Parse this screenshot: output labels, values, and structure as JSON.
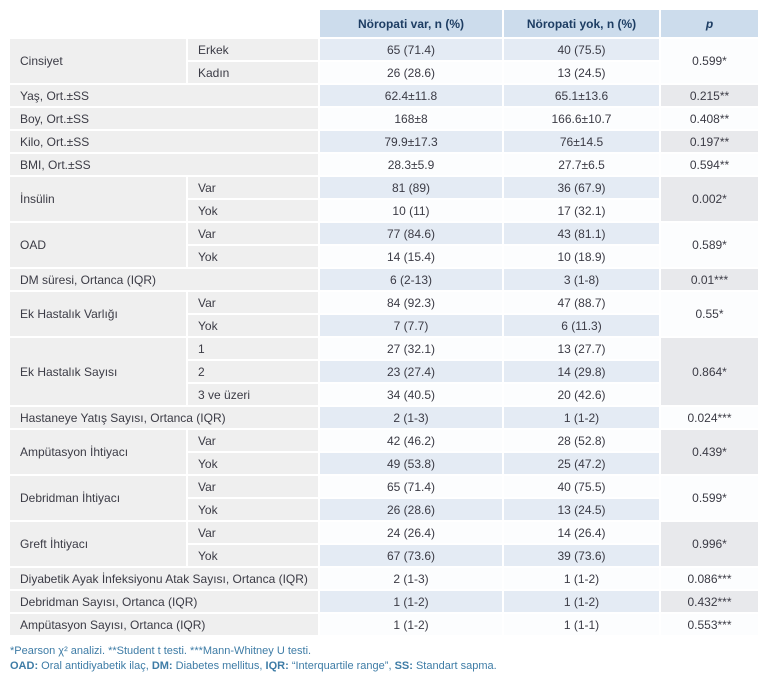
{
  "colors": {
    "header_bg": "#ccdcec",
    "header_text": "#1d3d63",
    "label_bg": "#efefef",
    "stripe_tint": "#e4ebf4",
    "stripe_plain": "#fcfdfe",
    "p_tint": "#e8e9ec",
    "body_text": "#3b3b45",
    "footnote_text": "#3e7ca6"
  },
  "table": {
    "header": {
      "neuropathy_yes": "Nöropati var, n (%)",
      "neuropathy_no": "Nöropati yok, n (%)",
      "p": "p"
    },
    "groups": [
      {
        "label": "Cinsiyet",
        "p": "0.599*",
        "rows": [
          {
            "sub": "Erkek",
            "yes": "65 (71.4)",
            "no": "40 (75.5)"
          },
          {
            "sub": "Kadın",
            "yes": "26 (28.6)",
            "no": "13 (24.5)"
          }
        ]
      },
      {
        "label": "Yaş, Ort.±SS",
        "p": "0.215**",
        "rows": [
          {
            "sub": null,
            "yes": "62.4±11.8",
            "no": "65.1±13.6"
          }
        ]
      },
      {
        "label": "Boy, Ort.±SS",
        "p": "0.408**",
        "rows": [
          {
            "sub": null,
            "yes": "168±8",
            "no": "166.6±10.7"
          }
        ]
      },
      {
        "label": "Kilo, Ort.±SS",
        "p": "0.197**",
        "rows": [
          {
            "sub": null,
            "yes": "79.9±17.3",
            "no": "76±14.5"
          }
        ]
      },
      {
        "label": "BMI, Ort.±SS",
        "p": "0.594**",
        "rows": [
          {
            "sub": null,
            "yes": "28.3±5.9",
            "no": "27.7±6.5"
          }
        ]
      },
      {
        "label": "İnsülin",
        "p": "0.002*",
        "rows": [
          {
            "sub": "Var",
            "yes": "81 (89)",
            "no": "36 (67.9)"
          },
          {
            "sub": "Yok",
            "yes": "10 (11)",
            "no": "17 (32.1)"
          }
        ]
      },
      {
        "label": "OAD",
        "p": "0.589*",
        "rows": [
          {
            "sub": "Var",
            "yes": "77 (84.6)",
            "no": "43 (81.1)"
          },
          {
            "sub": "Yok",
            "yes": "14 (15.4)",
            "no": "10 (18.9)"
          }
        ]
      },
      {
        "label": "DM süresi, Ortanca (IQR)",
        "p": "0.01***",
        "rows": [
          {
            "sub": null,
            "yes": "6 (2-13)",
            "no": "3 (1-8)"
          }
        ]
      },
      {
        "label": "Ek Hastalık Varlığı",
        "p": "0.55*",
        "rows": [
          {
            "sub": "Var",
            "yes": "84 (92.3)",
            "no": "47 (88.7)"
          },
          {
            "sub": "Yok",
            "yes": "7 (7.7)",
            "no": "6 (11.3)"
          }
        ]
      },
      {
        "label": "Ek Hastalık Sayısı",
        "p": "0.864*",
        "rows": [
          {
            "sub": "1",
            "yes": "27 (32.1)",
            "no": "13 (27.7)"
          },
          {
            "sub": "2",
            "yes": "23 (27.4)",
            "no": "14 (29.8)"
          },
          {
            "sub": "3 ve üzeri",
            "yes": "34 (40.5)",
            "no": "20 (42.6)"
          }
        ]
      },
      {
        "label": "Hastaneye Yatış Sayısı, Ortanca (IQR)",
        "p": "0.024***",
        "rows": [
          {
            "sub": null,
            "yes": "2 (1-3)",
            "no": "1 (1-2)"
          }
        ]
      },
      {
        "label": "Ampütasyon İhtiyacı",
        "p": "0.439*",
        "rows": [
          {
            "sub": "Var",
            "yes": "42 (46.2)",
            "no": "28 (52.8)"
          },
          {
            "sub": "Yok",
            "yes": "49 (53.8)",
            "no": "25 (47.2)"
          }
        ]
      },
      {
        "label": "Debridman İhtiyacı",
        "p": "0.599*",
        "rows": [
          {
            "sub": "Var",
            "yes": "65 (71.4)",
            "no": "40 (75.5)"
          },
          {
            "sub": "Yok",
            "yes": "26 (28.6)",
            "no": "13 (24.5)"
          }
        ]
      },
      {
        "label": "Greft İhtiyacı",
        "p": "0.996*",
        "rows": [
          {
            "sub": "Var",
            "yes": "24 (26.4)",
            "no": "14 (26.4)"
          },
          {
            "sub": "Yok",
            "yes": "67 (73.6)",
            "no": "39 (73.6)"
          }
        ]
      },
      {
        "label": "Diyabetik Ayak İnfeksiyonu Atak Sayısı, Ortanca (IQR)",
        "p": "0.086***",
        "rows": [
          {
            "sub": null,
            "yes": "2 (1-3)",
            "no": "1 (1-2)"
          }
        ]
      },
      {
        "label": "Debridman Sayısı, Ortanca (IQR)",
        "p": "0.432***",
        "rows": [
          {
            "sub": null,
            "yes": "1 (1-2)",
            "no": "1 (1-2)"
          }
        ]
      },
      {
        "label": "Ampütasyon Sayısı, Ortanca (IQR)",
        "p": "0.553***",
        "rows": [
          {
            "sub": null,
            "yes": "1 (1-2)",
            "no": "1 (1-1)"
          }
        ]
      }
    ]
  },
  "footnotes": {
    "line1": "*Pearson χ² analizi. **Student t testi. ***Mann-Whitney U testi.",
    "line2_segments": [
      {
        "bold": "OAD:",
        "text": " Oral antidiyabetik ilaç, "
      },
      {
        "bold": "DM:",
        "text": " Diabetes mellitus, "
      },
      {
        "bold": "IQR:",
        "text": " “Interquartile range”, "
      },
      {
        "bold": "SS:",
        "text": " Standart sapma."
      }
    ]
  }
}
